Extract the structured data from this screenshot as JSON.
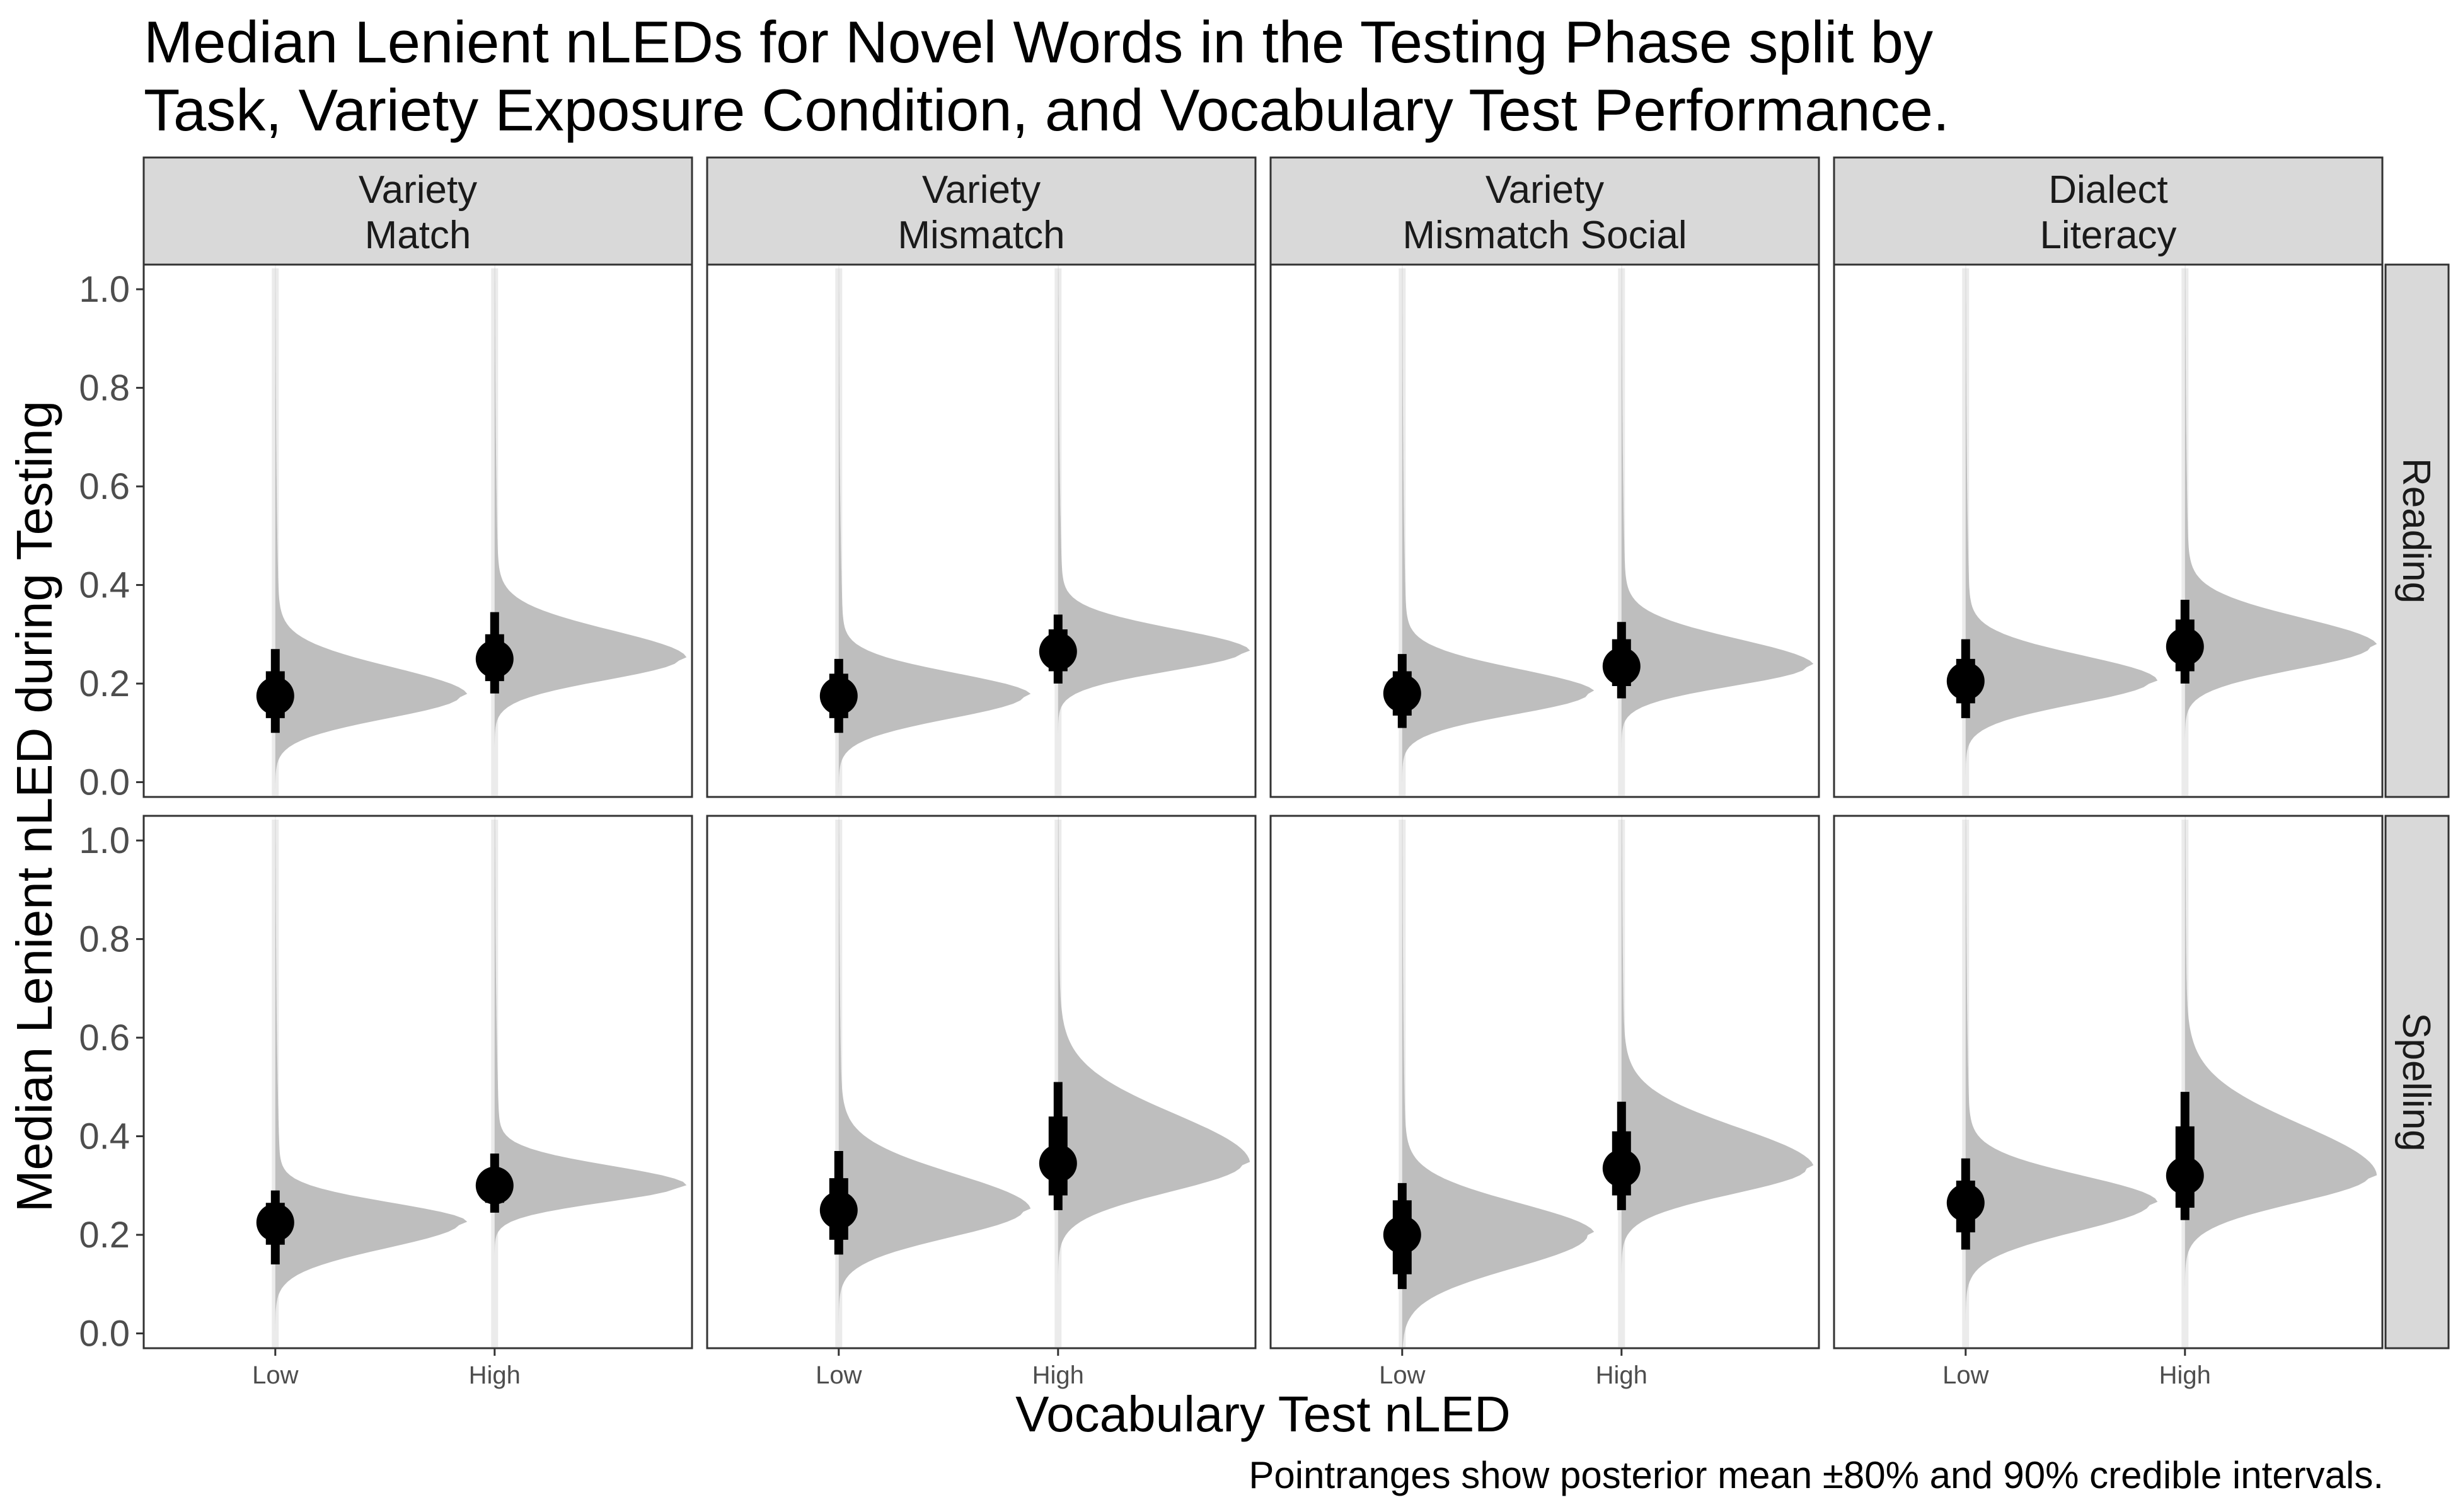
{
  "title_lines": [
    "Median Lenient nLEDs for Novel Words in the Testing Phase split by",
    "Task, Variety Exposure Condition, and Vocabulary Test Performance."
  ],
  "caption": "Pointranges show posterior mean ±80% and 90% credible intervals.",
  "chart_data": {
    "type": "halfeye",
    "xlabel": "Vocabulary Test nLED",
    "ylabel": "Median Lenient nLED during Testing",
    "categories": [
      "Low",
      "High"
    ],
    "ylim": [
      -0.03,
      1.05
    ],
    "yticks": [
      "0.0",
      "0.2",
      "0.4",
      "0.6",
      "0.8",
      "1.0"
    ],
    "grid": false,
    "colors": {
      "density": "#bebebe",
      "point": "#000000",
      "strip": "#d9d9d9",
      "slab_line": "#ebebeb"
    },
    "facet_cols": [
      "Variety\nMatch",
      "Variety\nMismatch",
      "Variety\nMismatch Social",
      "Dialect\nLiteracy"
    ],
    "facet_rows": [
      "Reading",
      "Spelling"
    ],
    "panels": [
      {
        "row": "Reading",
        "col": "Variety\nMatch",
        "points": [
          {
            "x": "Low",
            "mean": 0.175,
            "ci80": [
              0.13,
              0.225
            ],
            "ci90": [
              0.1,
              0.27
            ]
          },
          {
            "x": "High",
            "mean": 0.25,
            "ci80": [
              0.205,
              0.3
            ],
            "ci90": [
              0.18,
              0.345
            ]
          }
        ]
      },
      {
        "row": "Reading",
        "col": "Variety\nMismatch",
        "points": [
          {
            "x": "Low",
            "mean": 0.175,
            "ci80": [
              0.13,
              0.22
            ],
            "ci90": [
              0.1,
              0.25
            ]
          },
          {
            "x": "High",
            "mean": 0.265,
            "ci80": [
              0.225,
              0.31
            ],
            "ci90": [
              0.2,
              0.34
            ]
          }
        ]
      },
      {
        "row": "Reading",
        "col": "Variety\nMismatch Social",
        "points": [
          {
            "x": "Low",
            "mean": 0.18,
            "ci80": [
              0.135,
              0.225
            ],
            "ci90": [
              0.11,
              0.26
            ]
          },
          {
            "x": "High",
            "mean": 0.235,
            "ci80": [
              0.195,
              0.29
            ],
            "ci90": [
              0.17,
              0.325
            ]
          }
        ]
      },
      {
        "row": "Reading",
        "col": "Dialect\nLiteracy",
        "points": [
          {
            "x": "Low",
            "mean": 0.205,
            "ci80": [
              0.16,
              0.25
            ],
            "ci90": [
              0.13,
              0.29
            ]
          },
          {
            "x": "High",
            "mean": 0.275,
            "ci80": [
              0.225,
              0.33
            ],
            "ci90": [
              0.2,
              0.37
            ]
          }
        ]
      },
      {
        "row": "Spelling",
        "col": "Variety\nMatch",
        "points": [
          {
            "x": "Low",
            "mean": 0.225,
            "ci80": [
              0.18,
              0.265
            ],
            "ci90": [
              0.14,
              0.29
            ]
          },
          {
            "x": "High",
            "mean": 0.3,
            "ci80": [
              0.265,
              0.33
            ],
            "ci90": [
              0.245,
              0.365
            ]
          }
        ]
      },
      {
        "row": "Spelling",
        "col": "Variety\nMismatch",
        "points": [
          {
            "x": "Low",
            "mean": 0.25,
            "ci80": [
              0.19,
              0.315
            ],
            "ci90": [
              0.16,
              0.37
            ]
          },
          {
            "x": "High",
            "mean": 0.345,
            "ci80": [
              0.28,
              0.44
            ],
            "ci90": [
              0.25,
              0.51
            ]
          }
        ]
      },
      {
        "row": "Spelling",
        "col": "Variety\nMismatch Social",
        "points": [
          {
            "x": "Low",
            "mean": 0.2,
            "ci80": [
              0.12,
              0.27
            ],
            "ci90": [
              0.09,
              0.305
            ]
          },
          {
            "x": "High",
            "mean": 0.335,
            "ci80": [
              0.28,
              0.41
            ],
            "ci90": [
              0.25,
              0.47
            ]
          }
        ]
      },
      {
        "row": "Spelling",
        "col": "Dialect\nLiteracy",
        "points": [
          {
            "x": "Low",
            "mean": 0.265,
            "ci80": [
              0.205,
              0.31
            ],
            "ci90": [
              0.17,
              0.355
            ]
          },
          {
            "x": "High",
            "mean": 0.32,
            "ci80": [
              0.255,
              0.42
            ],
            "ci90": [
              0.23,
              0.49
            ]
          }
        ]
      }
    ]
  }
}
